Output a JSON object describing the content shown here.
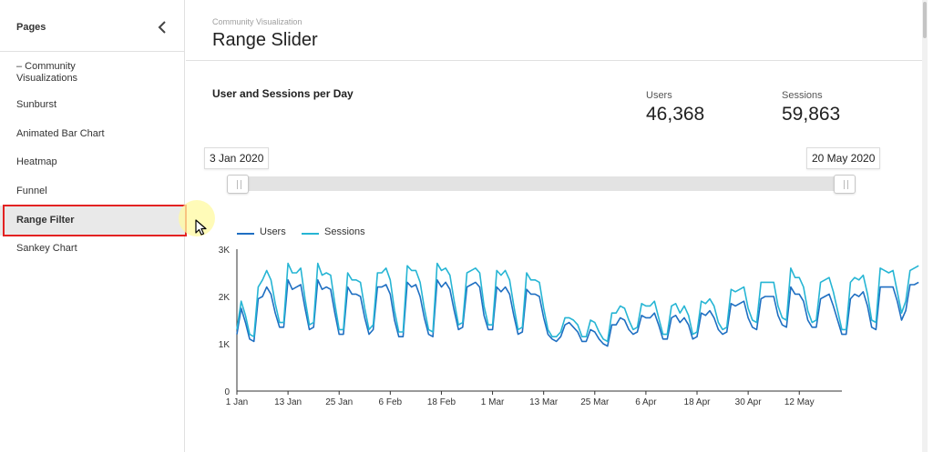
{
  "sidebar": {
    "title": "Pages",
    "items": [
      {
        "label": "– Community Visualizations",
        "active": false
      },
      {
        "label": "Sunburst",
        "active": false
      },
      {
        "label": "Animated Bar Chart",
        "active": false
      },
      {
        "label": "Heatmap",
        "active": false
      },
      {
        "label": "Funnel",
        "active": false
      },
      {
        "label": "Range Filter",
        "active": true
      },
      {
        "label": "Sankey Chart",
        "active": false
      }
    ]
  },
  "header": {
    "breadcrumb": "Community Visualization",
    "title": "Range Slider"
  },
  "metrics": [
    {
      "label": "Users",
      "value": "46,368"
    },
    {
      "label": "Sessions",
      "value": "59,863"
    }
  ],
  "slider": {
    "start": "3 Jan 2020",
    "end": "20 May 2020"
  },
  "colors": {
    "users": "#1f6fc2",
    "sessions": "#26b5d4",
    "highlight": "#e32222"
  },
  "chart_data": {
    "type": "line",
    "title": "User and Sessions per Day",
    "legend": "top-left",
    "grid": false,
    "ylim": [
      0,
      3000
    ],
    "yticks": [
      {
        "v": 0,
        "label": "0"
      },
      {
        "v": 1000,
        "label": "1K"
      },
      {
        "v": 2000,
        "label": "2K"
      },
      {
        "v": 3000,
        "label": "3K"
      }
    ],
    "xticks": [
      "1 Jan",
      "13 Jan",
      "25 Jan",
      "6 Feb",
      "18 Feb",
      "1 Mar",
      "13 Mar",
      "25 Mar",
      "6 Apr",
      "18 Apr",
      "30 Apr",
      "12 May"
    ],
    "x_start": "2020-01-01",
    "x_end": "2020-05-22",
    "series": [
      {
        "name": "Users",
        "color": "#1f6fc2",
        "values": [
          1200,
          1750,
          1450,
          1100,
          1050,
          1950,
          2000,
          2200,
          2050,
          1650,
          1350,
          1350,
          2350,
          2150,
          2200,
          2250,
          1750,
          1300,
          1350,
          2350,
          2150,
          2200,
          2150,
          1650,
          1200,
          1200,
          2200,
          2050,
          2050,
          2000,
          1550,
          1200,
          1300,
          2200,
          2200,
          2250,
          2050,
          1500,
          1150,
          1150,
          2300,
          2200,
          2250,
          2000,
          1550,
          1200,
          1150,
          2350,
          2200,
          2300,
          2150,
          1700,
          1300,
          1350,
          2200,
          2250,
          2300,
          2200,
          1600,
          1300,
          1300,
          2200,
          2100,
          2200,
          2050,
          1600,
          1200,
          1250,
          2150,
          2050,
          2050,
          2000,
          1550,
          1200,
          1100,
          1050,
          1150,
          1400,
          1450,
          1350,
          1250,
          1050,
          1050,
          1300,
          1250,
          1100,
          1000,
          950,
          1400,
          1400,
          1550,
          1500,
          1300,
          1200,
          1250,
          1600,
          1550,
          1550,
          1650,
          1400,
          1100,
          1100,
          1550,
          1600,
          1450,
          1550,
          1400,
          1100,
          1150,
          1650,
          1600,
          1700,
          1550,
          1300,
          1200,
          1250,
          1850,
          1800,
          1850,
          1900,
          1550,
          1350,
          1300,
          1950,
          2000,
          2000,
          2000,
          1600,
          1400,
          1350,
          2200,
          2050,
          2050,
          1900,
          1500,
          1350,
          1350,
          1950,
          2000,
          2050,
          1800,
          1500,
          1200,
          1200,
          1950,
          2050,
          2000,
          2100,
          1800,
          1350,
          1300,
          2200,
          2200,
          2200,
          2200,
          1900,
          1500,
          1700,
          2250,
          2250,
          2300
        ]
      },
      {
        "name": "Sessions",
        "color": "#26b5d4",
        "values": [
          1300,
          1900,
          1600,
          1200,
          1150,
          2200,
          2350,
          2550,
          2350,
          1850,
          1450,
          1450,
          2700,
          2500,
          2500,
          2600,
          1950,
          1400,
          1450,
          2700,
          2450,
          2500,
          2450,
          1850,
          1300,
          1300,
          2500,
          2350,
          2350,
          2300,
          1750,
          1300,
          1400,
          2500,
          2500,
          2600,
          2350,
          1700,
          1250,
          1250,
          2650,
          2550,
          2550,
          2300,
          1750,
          1300,
          1250,
          2700,
          2550,
          2600,
          2450,
          1900,
          1400,
          1450,
          2500,
          2550,
          2600,
          2500,
          1800,
          1400,
          1400,
          2550,
          2450,
          2550,
          2350,
          1800,
          1300,
          1350,
          2500,
          2350,
          2350,
          2300,
          1750,
          1300,
          1150,
          1150,
          1250,
          1550,
          1550,
          1500,
          1400,
          1150,
          1150,
          1500,
          1450,
          1250,
          1100,
          1050,
          1650,
          1650,
          1800,
          1750,
          1500,
          1300,
          1350,
          1850,
          1800,
          1800,
          1900,
          1550,
          1200,
          1200,
          1800,
          1850,
          1650,
          1800,
          1600,
          1200,
          1250,
          1900,
          1850,
          1950,
          1800,
          1450,
          1300,
          1350,
          2150,
          2100,
          2150,
          2200,
          1750,
          1500,
          1450,
          2300,
          2300,
          2300,
          2300,
          1800,
          1550,
          1500,
          2600,
          2400,
          2400,
          2200,
          1700,
          1450,
          1500,
          2300,
          2350,
          2400,
          2100,
          1700,
          1300,
          1300,
          2300,
          2400,
          2350,
          2450,
          2050,
          1500,
          1450,
          2600,
          2550,
          2500,
          2550,
          2100,
          1650,
          1900,
          2550,
          2600,
          2650
        ]
      }
    ]
  }
}
